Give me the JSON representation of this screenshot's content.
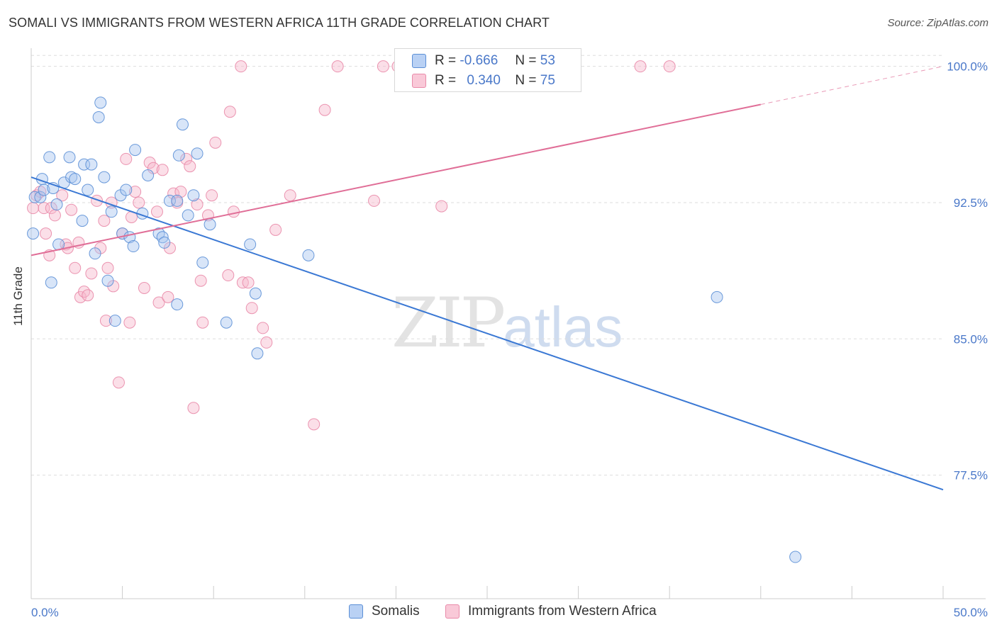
{
  "header": {
    "title": "SOMALI VS IMMIGRANTS FROM WESTERN AFRICA 11TH GRADE CORRELATION CHART",
    "source": "Source: ZipAtlas.com"
  },
  "legend_top": {
    "row1": {
      "r_label": "R =",
      "r_value": "-0.666",
      "n_label": "N =",
      "n_value": "53"
    },
    "row2": {
      "r_label": "R =",
      "r_value": "0.340",
      "n_label": "N =",
      "n_value": "75"
    }
  },
  "watermark": {
    "zip": "ZIP",
    "atlas": "atlas"
  },
  "chart_data": {
    "type": "scatter",
    "title": "SOMALI VS IMMIGRANTS FROM WESTERN AFRICA 11TH GRADE CORRELATION CHART",
    "xlabel": "",
    "ylabel": "11th Grade",
    "xlim": [
      0,
      50
    ],
    "ylim": [
      70.7,
      101.0
    ],
    "x_tick_labels": [
      "0.0%",
      "50.0%"
    ],
    "y_ticks": [
      {
        "value": 77.5,
        "label": "77.5%"
      },
      {
        "value": 85.0,
        "label": "85.0%"
      },
      {
        "value": 92.5,
        "label": "92.5%"
      },
      {
        "value": 100.0,
        "label": "100.0%"
      }
    ],
    "colors": {
      "somali_fill": "#a9c6f0",
      "somali_stroke": "#5b8fd6",
      "somali_line": "#3a78d4",
      "waf_fill": "#f7b8cc",
      "waf_stroke": "#e98aa9",
      "waf_line": "#e06e97"
    },
    "series": [
      {
        "name": "Somalis",
        "points": [
          [
            0.1,
            90.8
          ],
          [
            0.2,
            92.8
          ],
          [
            0.5,
            92.8
          ],
          [
            0.6,
            93.8
          ],
          [
            0.7,
            93.2
          ],
          [
            1.0,
            95.0
          ],
          [
            1.1,
            88.1
          ],
          [
            1.2,
            93.3
          ],
          [
            1.4,
            92.4
          ],
          [
            1.5,
            90.2
          ],
          [
            1.8,
            93.6
          ],
          [
            2.1,
            95.0
          ],
          [
            2.2,
            93.9
          ],
          [
            2.4,
            93.8
          ],
          [
            2.8,
            91.5
          ],
          [
            2.9,
            94.6
          ],
          [
            3.1,
            93.2
          ],
          [
            3.3,
            94.6
          ],
          [
            3.5,
            89.7
          ],
          [
            3.7,
            97.2
          ],
          [
            3.8,
            98.0
          ],
          [
            4.0,
            93.9
          ],
          [
            4.2,
            88.2
          ],
          [
            4.4,
            92.0
          ],
          [
            4.6,
            86.0
          ],
          [
            4.9,
            92.9
          ],
          [
            5.0,
            90.8
          ],
          [
            5.2,
            93.2
          ],
          [
            5.4,
            90.6
          ],
          [
            5.6,
            90.1
          ],
          [
            5.7,
            95.4
          ],
          [
            6.1,
            91.9
          ],
          [
            6.4,
            94.0
          ],
          [
            7.0,
            90.8
          ],
          [
            7.2,
            90.6
          ],
          [
            7.3,
            90.3
          ],
          [
            7.6,
            92.6
          ],
          [
            8.0,
            92.6
          ],
          [
            8.0,
            86.9
          ],
          [
            8.1,
            95.1
          ],
          [
            8.3,
            96.8
          ],
          [
            8.6,
            91.8
          ],
          [
            8.9,
            92.9
          ],
          [
            9.1,
            95.2
          ],
          [
            9.4,
            89.2
          ],
          [
            9.8,
            91.3
          ],
          [
            10.7,
            85.9
          ],
          [
            12.0,
            90.2
          ],
          [
            12.3,
            87.5
          ],
          [
            12.4,
            84.2
          ],
          [
            15.2,
            89.6
          ],
          [
            37.6,
            87.3
          ],
          [
            41.9,
            73.0
          ]
        ]
      },
      {
        "name": "Immigrants from Western Africa",
        "points": [
          [
            0.1,
            92.2
          ],
          [
            0.3,
            92.9
          ],
          [
            0.5,
            93.1
          ],
          [
            0.7,
            92.2
          ],
          [
            0.8,
            90.8
          ],
          [
            1.0,
            89.6
          ],
          [
            1.1,
            92.2
          ],
          [
            1.3,
            91.8
          ],
          [
            1.7,
            92.9
          ],
          [
            1.9,
            90.2
          ],
          [
            2.0,
            90.0
          ],
          [
            2.2,
            92.1
          ],
          [
            2.4,
            88.9
          ],
          [
            2.6,
            90.3
          ],
          [
            2.7,
            87.3
          ],
          [
            2.9,
            87.6
          ],
          [
            3.1,
            87.4
          ],
          [
            3.3,
            88.6
          ],
          [
            3.6,
            92.6
          ],
          [
            3.8,
            90.0
          ],
          [
            4.0,
            91.5
          ],
          [
            4.2,
            88.9
          ],
          [
            4.4,
            92.5
          ],
          [
            4.5,
            87.9
          ],
          [
            4.8,
            82.6
          ],
          [
            5.0,
            90.8
          ],
          [
            5.2,
            94.9
          ],
          [
            5.4,
            85.9
          ],
          [
            5.5,
            91.7
          ],
          [
            5.7,
            93.1
          ],
          [
            5.9,
            92.5
          ],
          [
            6.2,
            87.8
          ],
          [
            6.5,
            94.7
          ],
          [
            6.7,
            94.4
          ],
          [
            6.9,
            92.0
          ],
          [
            7.0,
            87.0
          ],
          [
            7.2,
            94.3
          ],
          [
            7.5,
            87.3
          ],
          [
            7.6,
            90.0
          ],
          [
            7.8,
            93.0
          ],
          [
            8.0,
            92.5
          ],
          [
            8.2,
            93.1
          ],
          [
            8.5,
            94.9
          ],
          [
            8.7,
            94.5
          ],
          [
            8.9,
            81.2
          ],
          [
            9.1,
            92.4
          ],
          [
            9.3,
            88.2
          ],
          [
            9.4,
            85.9
          ],
          [
            9.7,
            91.8
          ],
          [
            9.9,
            92.9
          ],
          [
            10.1,
            95.8
          ],
          [
            10.8,
            88.5
          ],
          [
            10.9,
            97.5
          ],
          [
            11.1,
            92.0
          ],
          [
            11.5,
            100.0
          ],
          [
            11.6,
            88.1
          ],
          [
            11.9,
            88.1
          ],
          [
            12.1,
            86.7
          ],
          [
            12.7,
            85.6
          ],
          [
            12.9,
            84.8
          ],
          [
            13.4,
            91.0
          ],
          [
            14.2,
            92.9
          ],
          [
            15.5,
            80.3
          ],
          [
            16.1,
            97.6
          ],
          [
            16.8,
            100.0
          ],
          [
            18.8,
            92.6
          ],
          [
            19.3,
            100.0
          ],
          [
            20.1,
            100.0
          ],
          [
            24.1,
            100.0
          ],
          [
            26.3,
            100.0
          ],
          [
            27.8,
            100.0
          ],
          [
            33.4,
            100.0
          ],
          [
            35.0,
            100.0
          ],
          [
            22.5,
            92.3
          ],
          [
            4.1,
            86.0
          ]
        ]
      }
    ],
    "trend_lines": [
      {
        "series": "Somalis",
        "x_start": 0,
        "y_start": 93.9,
        "x_end": 50,
        "y_end": 76.7
      },
      {
        "series": "Immigrants from Western Africa",
        "x_start": 0,
        "y_start": 89.6,
        "x_end": 40,
        "y_end": 97.9,
        "dashed_extension_to": [
          50,
          100.0
        ]
      }
    ]
  },
  "legend_bottom": {
    "somalis": "Somalis",
    "waf": "Immigrants from Western Africa"
  }
}
